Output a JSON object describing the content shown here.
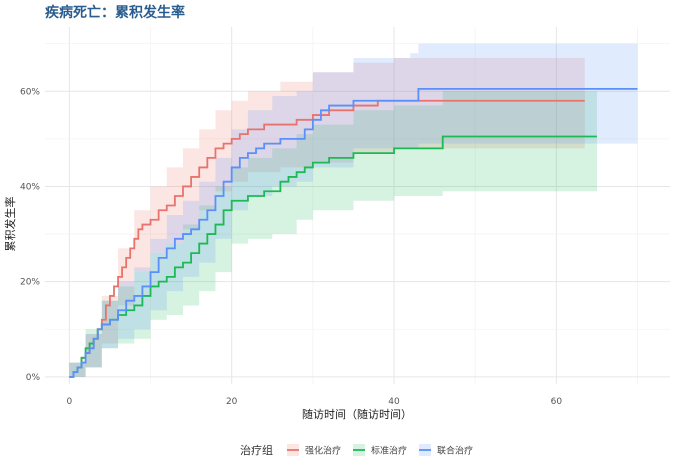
{
  "chart_data": {
    "type": "line",
    "title": "疾病死亡：累积发生率",
    "xlabel": "随访时间（随访时间）",
    "ylabel": "累积发生率",
    "xlim": [
      -3,
      74
    ],
    "ylim": [
      -0.015,
      0.735
    ],
    "x_ticks": [
      0,
      20,
      40,
      60
    ],
    "x_tick_labels": [
      "0",
      "20",
      "40",
      "60"
    ],
    "y_ticks": [
      0,
      0.2,
      0.4,
      0.6
    ],
    "y_tick_labels": [
      "0%",
      "20%",
      "40%",
      "60%"
    ],
    "grid": true,
    "legend": {
      "title": "治疗组",
      "position": "bottom"
    },
    "series": [
      {
        "name": "强化治疗",
        "color": "#e8736c",
        "points": [
          [
            0,
            0
          ],
          [
            0.5,
            0.01
          ],
          [
            1,
            0.02
          ],
          [
            1.5,
            0.04
          ],
          [
            2,
            0.05
          ],
          [
            2.5,
            0.07
          ],
          [
            3,
            0.08
          ],
          [
            3.5,
            0.1
          ],
          [
            4,
            0.12
          ],
          [
            4.5,
            0.15
          ],
          [
            5,
            0.17
          ],
          [
            5.5,
            0.19
          ],
          [
            6,
            0.21
          ],
          [
            6.5,
            0.23
          ],
          [
            7,
            0.25
          ],
          [
            7.5,
            0.27
          ],
          [
            8,
            0.29
          ],
          [
            8.5,
            0.31
          ],
          [
            9,
            0.32
          ],
          [
            10,
            0.33
          ],
          [
            11,
            0.35
          ],
          [
            12,
            0.36
          ],
          [
            13,
            0.38
          ],
          [
            14,
            0.4
          ],
          [
            15,
            0.42
          ],
          [
            16,
            0.44
          ],
          [
            17,
            0.46
          ],
          [
            18,
            0.48
          ],
          [
            19,
            0.49
          ],
          [
            20,
            0.5
          ],
          [
            21,
            0.51
          ],
          [
            22,
            0.52
          ],
          [
            24,
            0.53
          ],
          [
            26,
            0.53
          ],
          [
            28,
            0.54
          ],
          [
            30,
            0.55
          ],
          [
            32,
            0.56
          ],
          [
            35,
            0.57
          ],
          [
            38,
            0.58
          ],
          [
            46,
            0.58
          ],
          [
            63.5,
            0.58
          ]
        ],
        "upper": [
          [
            0,
            0.03
          ],
          [
            2,
            0.09
          ],
          [
            4,
            0.17
          ],
          [
            6,
            0.27
          ],
          [
            8,
            0.35
          ],
          [
            10,
            0.4
          ],
          [
            12,
            0.44
          ],
          [
            14,
            0.48
          ],
          [
            16,
            0.52
          ],
          [
            18,
            0.56
          ],
          [
            20,
            0.58
          ],
          [
            22,
            0.6
          ],
          [
            26,
            0.62
          ],
          [
            30,
            0.64
          ],
          [
            35,
            0.66
          ],
          [
            40,
            0.67
          ],
          [
            63.5,
            0.67
          ]
        ],
        "lower": [
          [
            0,
            0
          ],
          [
            2,
            0.02
          ],
          [
            4,
            0.07
          ],
          [
            6,
            0.15
          ],
          [
            8,
            0.22
          ],
          [
            10,
            0.26
          ],
          [
            12,
            0.28
          ],
          [
            14,
            0.31
          ],
          [
            16,
            0.35
          ],
          [
            18,
            0.39
          ],
          [
            20,
            0.41
          ],
          [
            22,
            0.43
          ],
          [
            26,
            0.44
          ],
          [
            30,
            0.45
          ],
          [
            35,
            0.47
          ],
          [
            40,
            0.48
          ],
          [
            63.5,
            0.48
          ]
        ]
      },
      {
        "name": "标准治疗",
        "color": "#1db954",
        "points": [
          [
            0,
            0
          ],
          [
            0.5,
            0.01
          ],
          [
            1,
            0.02
          ],
          [
            1.5,
            0.04
          ],
          [
            2,
            0.06
          ],
          [
            2.5,
            0.07
          ],
          [
            3,
            0.08
          ],
          [
            3.5,
            0.1
          ],
          [
            4,
            0.11
          ],
          [
            5,
            0.12
          ],
          [
            6,
            0.13
          ],
          [
            7,
            0.14
          ],
          [
            8,
            0.15
          ],
          [
            9,
            0.17
          ],
          [
            10,
            0.19
          ],
          [
            11,
            0.2
          ],
          [
            12,
            0.21
          ],
          [
            13,
            0.23
          ],
          [
            14,
            0.24
          ],
          [
            15,
            0.26
          ],
          [
            16,
            0.28
          ],
          [
            17,
            0.3
          ],
          [
            18,
            0.32
          ],
          [
            19,
            0.35
          ],
          [
            20,
            0.37
          ],
          [
            22,
            0.38
          ],
          [
            24,
            0.39
          ],
          [
            26,
            0.41
          ],
          [
            27,
            0.42
          ],
          [
            28,
            0.43
          ],
          [
            29,
            0.44
          ],
          [
            30,
            0.45
          ],
          [
            32,
            0.46
          ],
          [
            35,
            0.47
          ],
          [
            40,
            0.48
          ],
          [
            43,
            0.48
          ],
          [
            46,
            0.505
          ],
          [
            55,
            0.505
          ],
          [
            65,
            0.505
          ]
        ],
        "upper": [
          [
            0,
            0.03
          ],
          [
            2,
            0.1
          ],
          [
            4,
            0.16
          ],
          [
            6,
            0.19
          ],
          [
            8,
            0.22
          ],
          [
            10,
            0.26
          ],
          [
            12,
            0.28
          ],
          [
            14,
            0.32
          ],
          [
            16,
            0.36
          ],
          [
            18,
            0.4
          ],
          [
            20,
            0.44
          ],
          [
            22,
            0.46
          ],
          [
            25,
            0.48
          ],
          [
            28,
            0.51
          ],
          [
            30,
            0.53
          ],
          [
            35,
            0.56
          ],
          [
            40,
            0.57
          ],
          [
            46,
            0.6
          ],
          [
            65,
            0.6
          ]
        ],
        "lower": [
          [
            0,
            0
          ],
          [
            2,
            0.02
          ],
          [
            4,
            0.06
          ],
          [
            6,
            0.07
          ],
          [
            8,
            0.08
          ],
          [
            10,
            0.12
          ],
          [
            12,
            0.13
          ],
          [
            14,
            0.15
          ],
          [
            16,
            0.18
          ],
          [
            18,
            0.22
          ],
          [
            20,
            0.28
          ],
          [
            22,
            0.29
          ],
          [
            25,
            0.3
          ],
          [
            28,
            0.33
          ],
          [
            30,
            0.35
          ],
          [
            35,
            0.37
          ],
          [
            40,
            0.38
          ],
          [
            46,
            0.39
          ],
          [
            65,
            0.39
          ]
        ]
      },
      {
        "name": "联合治疗",
        "color": "#5b8ff9",
        "points": [
          [
            0,
            0
          ],
          [
            0.5,
            0.01
          ],
          [
            1,
            0.02
          ],
          [
            1.5,
            0.03
          ],
          [
            2,
            0.05
          ],
          [
            2.5,
            0.06
          ],
          [
            3,
            0.08
          ],
          [
            3.5,
            0.1
          ],
          [
            4,
            0.11
          ],
          [
            5,
            0.12
          ],
          [
            6,
            0.14
          ],
          [
            7,
            0.16
          ],
          [
            8,
            0.17
          ],
          [
            9,
            0.19
          ],
          [
            10,
            0.22
          ],
          [
            11,
            0.25
          ],
          [
            12,
            0.27
          ],
          [
            13,
            0.29
          ],
          [
            14,
            0.3
          ],
          [
            15,
            0.31
          ],
          [
            16,
            0.33
          ],
          [
            17,
            0.35
          ],
          [
            18,
            0.38
          ],
          [
            19,
            0.41
          ],
          [
            20,
            0.44
          ],
          [
            21,
            0.46
          ],
          [
            22,
            0.47
          ],
          [
            23,
            0.48
          ],
          [
            24,
            0.49
          ],
          [
            26,
            0.5
          ],
          [
            28,
            0.5
          ],
          [
            29,
            0.52
          ],
          [
            30,
            0.54
          ],
          [
            31,
            0.56
          ],
          [
            32,
            0.57
          ],
          [
            34,
            0.57
          ],
          [
            35,
            0.58
          ],
          [
            38,
            0.58
          ],
          [
            42,
            0.58
          ],
          [
            43,
            0.605
          ],
          [
            60,
            0.605
          ],
          [
            70,
            0.605
          ]
        ],
        "upper": [
          [
            0,
            0.03
          ],
          [
            2,
            0.09
          ],
          [
            4,
            0.16
          ],
          [
            6,
            0.2
          ],
          [
            8,
            0.23
          ],
          [
            10,
            0.29
          ],
          [
            12,
            0.34
          ],
          [
            14,
            0.37
          ],
          [
            16,
            0.41
          ],
          [
            18,
            0.46
          ],
          [
            20,
            0.52
          ],
          [
            22,
            0.56
          ],
          [
            25,
            0.59
          ],
          [
            28,
            0.6
          ],
          [
            30,
            0.64
          ],
          [
            35,
            0.67
          ],
          [
            42,
            0.68
          ],
          [
            43,
            0.7
          ],
          [
            70,
            0.7
          ]
        ],
        "lower": [
          [
            0,
            0
          ],
          [
            2,
            0.02
          ],
          [
            4,
            0.06
          ],
          [
            6,
            0.08
          ],
          [
            8,
            0.1
          ],
          [
            10,
            0.14
          ],
          [
            12,
            0.18
          ],
          [
            14,
            0.21
          ],
          [
            16,
            0.24
          ],
          [
            18,
            0.29
          ],
          [
            20,
            0.35
          ],
          [
            22,
            0.38
          ],
          [
            25,
            0.4
          ],
          [
            28,
            0.41
          ],
          [
            30,
            0.44
          ],
          [
            35,
            0.48
          ],
          [
            42,
            0.48
          ],
          [
            43,
            0.49
          ],
          [
            70,
            0.49
          ]
        ]
      }
    ]
  }
}
